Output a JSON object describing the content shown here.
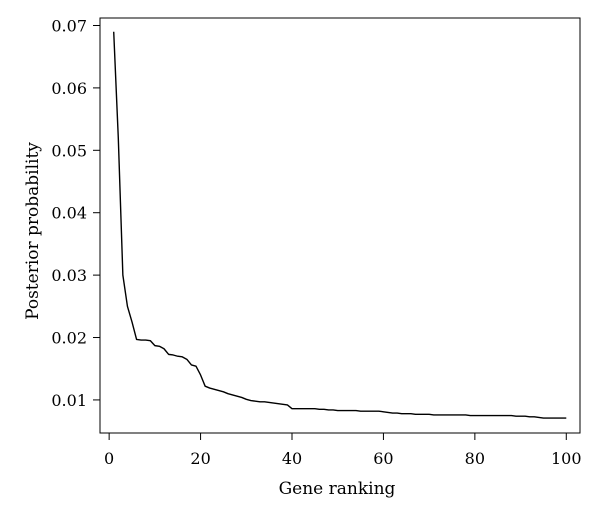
{
  "chart_data": {
    "type": "line",
    "title": "",
    "xlabel": "Gene ranking",
    "ylabel": "Posterior probability",
    "xlim": [
      -2,
      103
    ],
    "ylim": [
      0.0047,
      0.0712
    ],
    "xticks": [
      0,
      20,
      40,
      60,
      80,
      100
    ],
    "yticks": [
      0.01,
      0.02,
      0.03,
      0.04,
      0.05,
      0.06,
      0.07
    ],
    "xtick_labels": [
      "0",
      "20",
      "40",
      "60",
      "80",
      "100"
    ],
    "ytick_labels": [
      "0.01",
      "0.02",
      "0.03",
      "0.04",
      "0.05",
      "0.06",
      "0.07"
    ],
    "grid": false,
    "legend": "none",
    "line_color": "#000000",
    "series": [
      {
        "x": [
          1,
          2,
          3,
          4,
          5,
          6,
          7,
          8,
          9,
          10,
          11,
          12,
          13,
          14,
          15,
          16,
          17,
          18,
          19,
          20,
          21,
          22,
          23,
          24,
          25,
          26,
          27,
          28,
          29,
          30,
          31,
          32,
          33,
          34,
          35,
          36,
          37,
          38,
          39,
          40,
          41,
          42,
          43,
          44,
          45,
          46,
          47,
          48,
          49,
          50,
          51,
          52,
          53,
          54,
          55,
          56,
          57,
          58,
          59,
          60,
          61,
          62,
          63,
          64,
          65,
          66,
          67,
          68,
          69,
          70,
          71,
          72,
          73,
          74,
          75,
          76,
          77,
          78,
          79,
          80,
          81,
          82,
          83,
          84,
          85,
          86,
          87,
          88,
          89,
          90,
          91,
          92,
          93,
          94,
          95,
          96,
          97,
          98,
          99,
          100
        ],
        "values": [
          0.069,
          0.052,
          0.03,
          0.025,
          0.0225,
          0.0197,
          0.0196,
          0.0196,
          0.0195,
          0.0187,
          0.0186,
          0.0182,
          0.0173,
          0.0172,
          0.017,
          0.0169,
          0.0165,
          0.0156,
          0.0154,
          0.014,
          0.0122,
          0.0119,
          0.0117,
          0.0115,
          0.0113,
          0.011,
          0.0108,
          0.0106,
          0.0104,
          0.0101,
          0.0099,
          0.0098,
          0.0097,
          0.0097,
          0.0096,
          0.0095,
          0.0094,
          0.0093,
          0.0092,
          0.0086,
          0.0086,
          0.0086,
          0.0086,
          0.0086,
          0.0086,
          0.0085,
          0.0085,
          0.0084,
          0.0084,
          0.0083,
          0.0083,
          0.0083,
          0.0083,
          0.0083,
          0.0082,
          0.0082,
          0.0082,
          0.0082,
          0.0082,
          0.0081,
          0.008,
          0.0079,
          0.0079,
          0.0078,
          0.0078,
          0.0078,
          0.0077,
          0.0077,
          0.0077,
          0.0077,
          0.0076,
          0.0076,
          0.0076,
          0.0076,
          0.0076,
          0.0076,
          0.0076,
          0.0076,
          0.0075,
          0.0075,
          0.0075,
          0.0075,
          0.0075,
          0.0075,
          0.0075,
          0.0075,
          0.0075,
          0.0075,
          0.0074,
          0.0074,
          0.0074,
          0.0073,
          0.0073,
          0.0072,
          0.0071,
          0.0071,
          0.0071,
          0.0071,
          0.0071,
          0.0071
        ]
      }
    ]
  }
}
